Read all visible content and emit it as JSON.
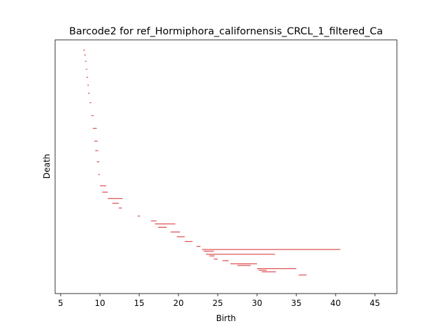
{
  "chart_data": {
    "type": "barcode",
    "title": "Barcode2 for ref_Hormiphora_californensis_CRCL_1_filtered_Ca",
    "xlabel": "Birth",
    "ylabel": "Death",
    "xlim": [
      4.3,
      47.8
    ],
    "xticks": [
      "5",
      "10",
      "15",
      "20",
      "25",
      "30",
      "35",
      "40",
      "45"
    ],
    "xtick_values": [
      5,
      10,
      15,
      20,
      25,
      30,
      35,
      40,
      45
    ],
    "y_axis_ticks_shown": false,
    "grid": false,
    "bar_color": "#d62728",
    "bar_count": 52,
    "bars": [
      {
        "start": 7.9,
        "end": 8.1,
        "rank": 1
      },
      {
        "start": 8.0,
        "end": 8.2,
        "rank": 4
      },
      {
        "start": 8.1,
        "end": 8.3,
        "rank": 8
      },
      {
        "start": 8.2,
        "end": 8.4,
        "rank": 13
      },
      {
        "start": 8.3,
        "end": 8.5,
        "rank": 18
      },
      {
        "start": 8.4,
        "end": 8.6,
        "rank": 23
      },
      {
        "start": 8.5,
        "end": 8.7,
        "rank": 28
      },
      {
        "start": 8.7,
        "end": 8.9,
        "rank": 34
      },
      {
        "start": 8.9,
        "end": 9.2,
        "rank": 42
      },
      {
        "start": 9.1,
        "end": 9.6,
        "rank": 50
      },
      {
        "start": 9.3,
        "end": 9.7,
        "rank": 58
      },
      {
        "start": 9.4,
        "end": 9.8,
        "rank": 64
      },
      {
        "start": 9.6,
        "end": 9.9,
        "rank": 71
      },
      {
        "start": 9.8,
        "end": 10.0,
        "rank": 79
      },
      {
        "start": 10.0,
        "end": 10.8,
        "rank": 86
      },
      {
        "start": 10.3,
        "end": 11.0,
        "rank": 90
      },
      {
        "start": 11.0,
        "end": 12.9,
        "rank": 94
      },
      {
        "start": 11.6,
        "end": 12.4,
        "rank": 97
      },
      {
        "start": 12.4,
        "end": 12.8,
        "rank": 100
      },
      {
        "start": 14.8,
        "end": 15.1,
        "rank": 105
      },
      {
        "start": 16.5,
        "end": 17.2,
        "rank": 108
      },
      {
        "start": 17.0,
        "end": 19.6,
        "rank": 110
      },
      {
        "start": 17.4,
        "end": 18.5,
        "rank": 112
      },
      {
        "start": 19.0,
        "end": 20.2,
        "rank": 115
      },
      {
        "start": 19.8,
        "end": 20.8,
        "rank": 118
      },
      {
        "start": 20.8,
        "end": 21.8,
        "rank": 121
      },
      {
        "start": 22.3,
        "end": 22.8,
        "rank": 124
      },
      {
        "start": 23.0,
        "end": 40.6,
        "rank": 126
      },
      {
        "start": 23.2,
        "end": 24.5,
        "rank": 127
      },
      {
        "start": 23.5,
        "end": 32.3,
        "rank": 129
      },
      {
        "start": 23.9,
        "end": 24.6,
        "rank": 130
      },
      {
        "start": 24.5,
        "end": 25.0,
        "rank": 132
      },
      {
        "start": 25.6,
        "end": 26.4,
        "rank": 133
      },
      {
        "start": 26.6,
        "end": 30.0,
        "rank": 135
      },
      {
        "start": 27.5,
        "end": 29.2,
        "rank": 136
      },
      {
        "start": 30.0,
        "end": 35.0,
        "rank": 138
      },
      {
        "start": 30.2,
        "end": 31.2,
        "rank": 139
      },
      {
        "start": 30.6,
        "end": 32.4,
        "rank": 140
      },
      {
        "start": 35.3,
        "end": 36.3,
        "rank": 142
      }
    ],
    "rank_max": 145
  }
}
